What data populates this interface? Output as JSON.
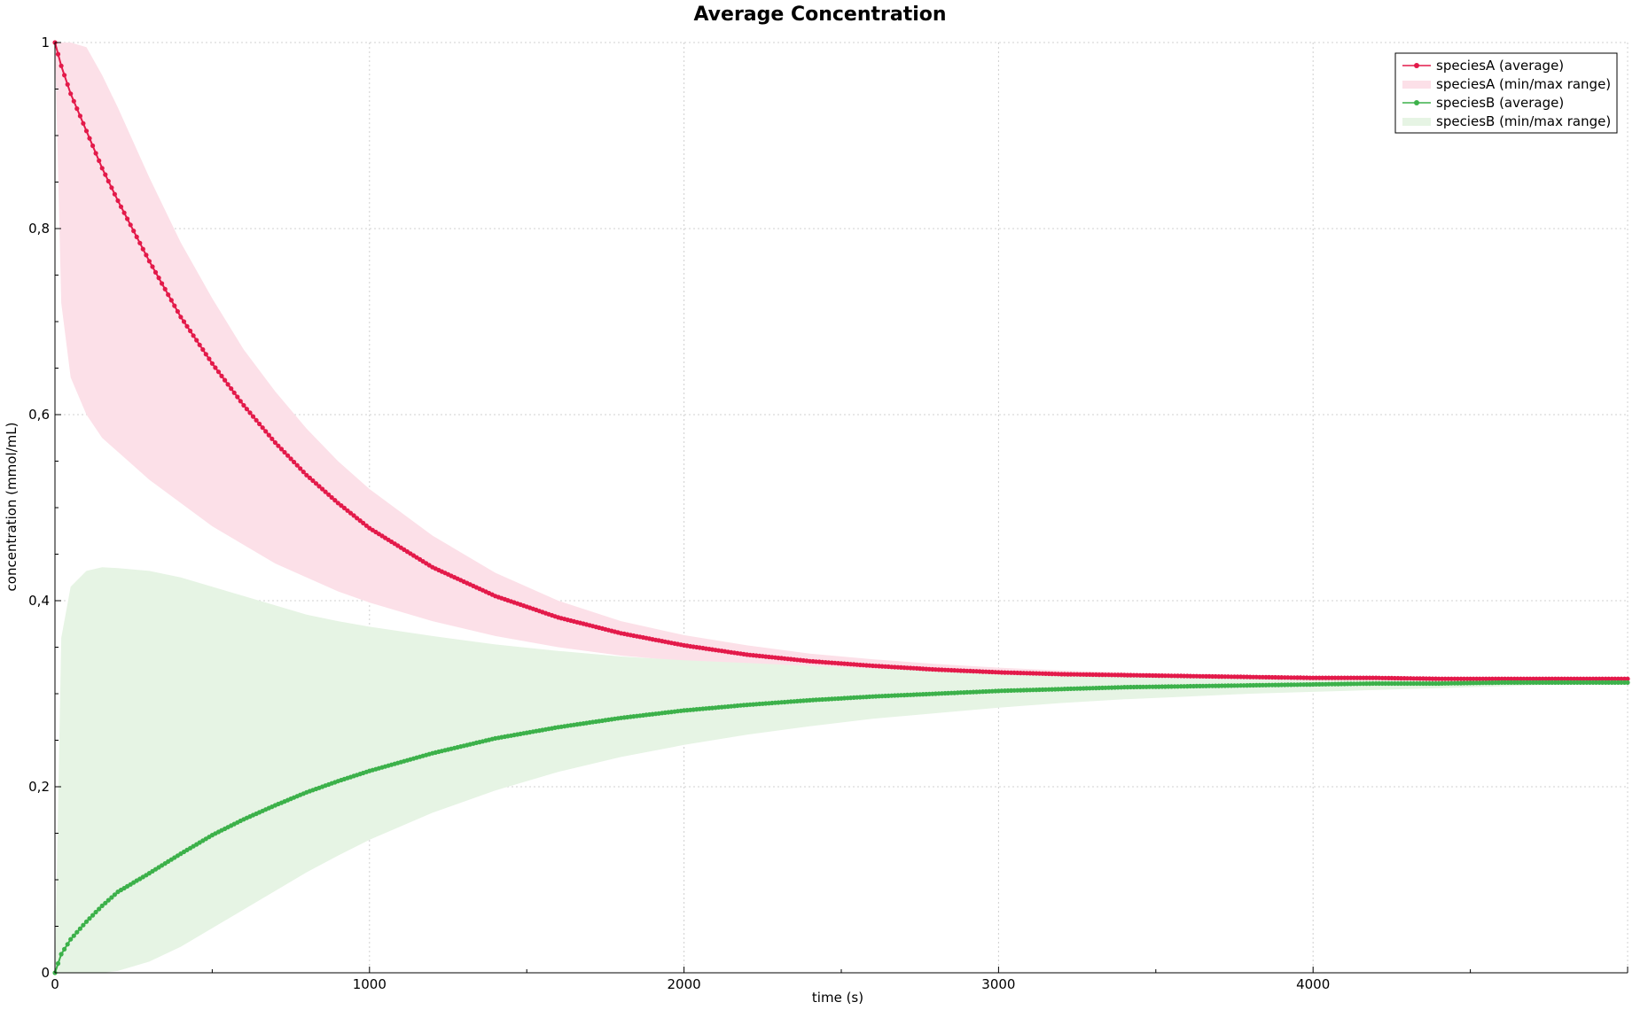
{
  "chart_data": {
    "type": "line",
    "title": "Average Concentration",
    "xlabel": "time (s)",
    "ylabel": "concentration (mmol/mL)",
    "xlim": [
      0,
      5000
    ],
    "ylim": [
      0,
      1
    ],
    "x_ticks": [
      0,
      1000,
      2000,
      3000,
      4000
    ],
    "x_tick_labels": [
      "0",
      "1000",
      "2000",
      "3000",
      "4000"
    ],
    "y_ticks": [
      0,
      0.2,
      0.4,
      0.6,
      0.8,
      1
    ],
    "y_tick_labels": [
      "0",
      "0,2",
      "0,4",
      "0,6",
      "0,8",
      "1"
    ],
    "grid": true,
    "legend_position": "top-right",
    "x": [
      0,
      20,
      50,
      100,
      150,
      200,
      300,
      400,
      500,
      600,
      700,
      800,
      900,
      1000,
      1200,
      1400,
      1600,
      1800,
      2000,
      2200,
      2400,
      2600,
      2800,
      3000,
      3200,
      3400,
      3600,
      3800,
      4000,
      4200,
      4400,
      4600,
      4800,
      5000
    ],
    "series": [
      {
        "name": "speciesA (average)",
        "kind": "line-markers",
        "color": "#e31a4a",
        "values": [
          1.0,
          0.975,
          0.945,
          0.905,
          0.865,
          0.83,
          0.765,
          0.705,
          0.655,
          0.61,
          0.57,
          0.535,
          0.505,
          0.478,
          0.436,
          0.405,
          0.382,
          0.365,
          0.352,
          0.342,
          0.335,
          0.33,
          0.326,
          0.323,
          0.321,
          0.32,
          0.319,
          0.318,
          0.317,
          0.317,
          0.316,
          0.316,
          0.316,
          0.316
        ]
      },
      {
        "name": "speciesA (min/max range)",
        "kind": "band",
        "color": "#fce0e8",
        "lower": [
          1.0,
          0.72,
          0.64,
          0.6,
          0.575,
          0.56,
          0.53,
          0.505,
          0.48,
          0.46,
          0.44,
          0.425,
          0.41,
          0.398,
          0.378,
          0.362,
          0.35,
          0.341,
          0.335,
          0.33,
          0.326,
          0.323,
          0.321,
          0.32,
          0.319,
          0.318,
          0.318,
          0.317,
          0.317,
          0.316,
          0.316,
          0.316,
          0.316,
          0.316
        ],
        "upper": [
          1.0,
          1.0,
          1.0,
          0.995,
          0.965,
          0.93,
          0.855,
          0.785,
          0.725,
          0.67,
          0.625,
          0.585,
          0.55,
          0.52,
          0.47,
          0.43,
          0.4,
          0.378,
          0.363,
          0.352,
          0.343,
          0.337,
          0.332,
          0.328,
          0.325,
          0.323,
          0.321,
          0.32,
          0.319,
          0.318,
          0.317,
          0.317,
          0.316,
          0.316
        ]
      },
      {
        "name": "speciesB (average)",
        "kind": "line-markers",
        "color": "#3cb14a",
        "values": [
          0.0,
          0.02,
          0.036,
          0.055,
          0.072,
          0.087,
          0.107,
          0.128,
          0.148,
          0.165,
          0.18,
          0.194,
          0.206,
          0.217,
          0.236,
          0.252,
          0.264,
          0.274,
          0.282,
          0.288,
          0.293,
          0.297,
          0.3,
          0.303,
          0.305,
          0.307,
          0.308,
          0.309,
          0.31,
          0.311,
          0.311,
          0.312,
          0.312,
          0.312
        ]
      },
      {
        "name": "speciesB (min/max range)",
        "kind": "band",
        "color": "#e6f4e4",
        "lower": [
          0.0,
          0.0,
          0.0,
          0.0,
          0.0,
          0.002,
          0.012,
          0.028,
          0.048,
          0.068,
          0.088,
          0.108,
          0.126,
          0.143,
          0.172,
          0.196,
          0.216,
          0.232,
          0.245,
          0.256,
          0.265,
          0.273,
          0.279,
          0.285,
          0.29,
          0.294,
          0.297,
          0.3,
          0.302,
          0.304,
          0.306,
          0.308,
          0.31,
          0.312
        ],
        "upper": [
          0.0,
          0.36,
          0.415,
          0.432,
          0.436,
          0.435,
          0.432,
          0.425,
          0.415,
          0.405,
          0.395,
          0.385,
          0.378,
          0.372,
          0.362,
          0.353,
          0.346,
          0.34,
          0.336,
          0.333,
          0.33,
          0.327,
          0.325,
          0.323,
          0.321,
          0.32,
          0.319,
          0.318,
          0.317,
          0.316,
          0.315,
          0.314,
          0.313,
          0.313
        ]
      }
    ]
  }
}
